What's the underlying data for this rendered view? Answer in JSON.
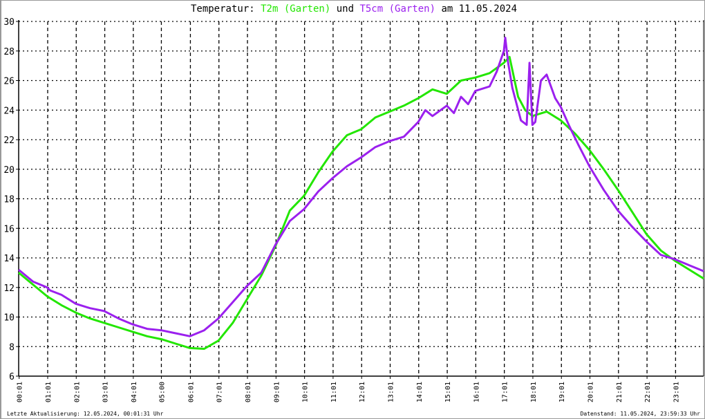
{
  "title": {
    "prefix": "Temperatur: ",
    "series1_label": "T2m (Garten)",
    "middle": " und ",
    "series2_label": "T5cm (Garten)",
    "suffix": " am 11.05.2024"
  },
  "footer": {
    "left": "Letzte Aktualisierung: 12.05.2024, 00:01:31 Uhr",
    "right": "Datenstand: 11.05.2024, 23:59:33 Uhr"
  },
  "chart_data": {
    "type": "line",
    "title": "Temperatur: T2m (Garten) und T5cm (Garten) am 11.05.2024",
    "xlabel": "",
    "ylabel": "",
    "xlim_hours": [
      0,
      24
    ],
    "ylim": [
      6,
      30
    ],
    "y_ticks": [
      6,
      8,
      10,
      12,
      14,
      16,
      18,
      20,
      22,
      24,
      26,
      28,
      30
    ],
    "x_tick_hours": [
      0.017,
      1.017,
      2.017,
      3.017,
      4.017,
      5,
      6.017,
      7.017,
      8.017,
      9.017,
      10.017,
      11.017,
      12.017,
      13.017,
      14.017,
      15.017,
      16.017,
      17.017,
      18.017,
      19.017,
      20.017,
      21.017,
      22.017,
      23.017
    ],
    "x_tick_labels": [
      "00:01",
      "01:01",
      "02:01",
      "03:01",
      "04:01",
      "05:00",
      "06:01",
      "07:01",
      "08:01",
      "09:01",
      "10:01",
      "11:01",
      "12:01",
      "13:01",
      "14:01",
      "15:01",
      "16:01",
      "17:01",
      "18:01",
      "19:01",
      "20:01",
      "21:01",
      "22:01",
      "23:01"
    ],
    "grid": true,
    "legend": "in title",
    "series": [
      {
        "name": "T2m (Garten)",
        "color": "#22e600",
        "x_hours": [
          0,
          0.5,
          1,
          1.5,
          2,
          2.5,
          3,
          3.5,
          4,
          4.5,
          5,
          5.5,
          6,
          6.5,
          7,
          7.5,
          8,
          8.5,
          9,
          9.5,
          10,
          10.5,
          11,
          11.5,
          12,
          12.5,
          13,
          13.5,
          14,
          14.5,
          15,
          15.5,
          16,
          16.5,
          17,
          17.2,
          17.5,
          17.75,
          18,
          18.5,
          19,
          19.5,
          20,
          20.5,
          21,
          21.5,
          22,
          22.5,
          23,
          23.5,
          24
        ],
        "values": [
          13.0,
          12.2,
          11.4,
          10.8,
          10.3,
          9.9,
          9.6,
          9.3,
          9.0,
          8.7,
          8.5,
          8.2,
          7.9,
          7.85,
          8.4,
          9.6,
          11.2,
          12.8,
          14.8,
          17.2,
          18.2,
          19.8,
          21.2,
          22.3,
          22.7,
          23.5,
          23.9,
          24.3,
          24.8,
          25.4,
          25.1,
          26.0,
          26.2,
          26.5,
          27.2,
          27.6,
          24.9,
          24.0,
          23.6,
          23.9,
          23.3,
          22.4,
          21.3,
          20.0,
          18.6,
          17.1,
          15.6,
          14.5,
          13.8,
          13.2,
          12.6
        ]
      },
      {
        "name": "T5cm (Garten)",
        "color": "#9b20ee",
        "x_hours": [
          0,
          0.5,
          1,
          1.1,
          1.5,
          2,
          2.5,
          3,
          3.5,
          4,
          4.5,
          5,
          5.5,
          6,
          6.5,
          7,
          7.5,
          8,
          8.5,
          9,
          9.5,
          10,
          10.5,
          11,
          11.5,
          12,
          12.5,
          13,
          13.5,
          14,
          14.25,
          14.5,
          15,
          15.25,
          15.5,
          15.75,
          16,
          16.5,
          16.75,
          17.0,
          17.05,
          17.15,
          17.3,
          17.6,
          17.8,
          17.9,
          18.0,
          18.1,
          18.3,
          18.5,
          18.8,
          19,
          19.3,
          19.6,
          20,
          20.5,
          21,
          21.5,
          22,
          22.5,
          23,
          23.5,
          24
        ],
        "values": [
          13.2,
          12.4,
          12.0,
          11.8,
          11.5,
          10.9,
          10.6,
          10.4,
          9.9,
          9.5,
          9.2,
          9.1,
          8.9,
          8.7,
          9.1,
          9.9,
          11.0,
          12.1,
          13.0,
          14.9,
          16.5,
          17.3,
          18.5,
          19.4,
          20.2,
          20.8,
          21.5,
          21.9,
          22.2,
          23.2,
          24.0,
          23.6,
          24.3,
          23.8,
          24.9,
          24.4,
          25.3,
          25.6,
          26.6,
          28.0,
          28.9,
          27.2,
          25.5,
          23.3,
          23.0,
          27.2,
          23.0,
          23.2,
          26.0,
          26.4,
          24.8,
          24.2,
          22.9,
          21.7,
          20.2,
          18.6,
          17.2,
          16.1,
          15.1,
          14.2,
          13.9,
          13.5,
          13.1
        ]
      }
    ]
  }
}
